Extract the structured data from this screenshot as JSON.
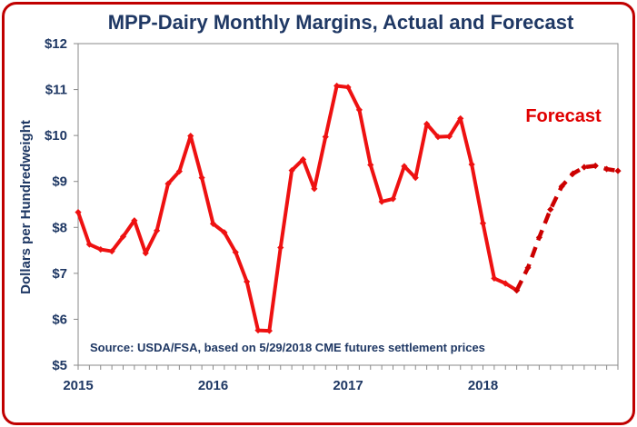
{
  "chart_data": {
    "type": "line",
    "title": "MPP-Dairy Monthly Margins, Actual and Forecast",
    "ylabel": "Dollars per Hundredweight",
    "xlabel": "",
    "ylim": [
      5,
      12
    ],
    "y_tick_values": [
      5,
      6,
      7,
      8,
      9,
      10,
      11,
      12
    ],
    "y_tick_labels": [
      "$5",
      "$6",
      "$7",
      "$8",
      "$9",
      "$10",
      "$11",
      "$12"
    ],
    "x_tick_labels": [
      "2015",
      "2016",
      "2017",
      "2018"
    ],
    "months_per_year": 12,
    "first_year": 2015,
    "annotation": "Forecast",
    "source_note": "Source:  USDA/FSA, based on 5/29/2018 CME futures settlement prices",
    "grid": false,
    "series": [
      {
        "style": "actual",
        "color": "#ee1111",
        "points": [
          {
            "x": "2015-01",
            "y": 8.33
          },
          {
            "x": "2015-02",
            "y": 7.63
          },
          {
            "x": "2015-03",
            "y": 7.52
          },
          {
            "x": "2015-04",
            "y": 7.48
          },
          {
            "x": "2015-05",
            "y": 7.8
          },
          {
            "x": "2015-06",
            "y": 8.15
          },
          {
            "x": "2015-07",
            "y": 7.44
          },
          {
            "x": "2015-08",
            "y": 7.93
          },
          {
            "x": "2015-09",
            "y": 8.95
          },
          {
            "x": "2015-10",
            "y": 9.22
          },
          {
            "x": "2015-11",
            "y": 9.99
          },
          {
            "x": "2015-12",
            "y": 9.08
          },
          {
            "x": "2016-01",
            "y": 8.08
          },
          {
            "x": "2016-02",
            "y": 7.89
          },
          {
            "x": "2016-03",
            "y": 7.46
          },
          {
            "x": "2016-04",
            "y": 6.82
          },
          {
            "x": "2016-05",
            "y": 5.76
          },
          {
            "x": "2016-06",
            "y": 5.75
          },
          {
            "x": "2016-07",
            "y": 7.56
          },
          {
            "x": "2016-08",
            "y": 9.24
          },
          {
            "x": "2016-09",
            "y": 9.48
          },
          {
            "x": "2016-10",
            "y": 8.84
          },
          {
            "x": "2016-11",
            "y": 9.97
          },
          {
            "x": "2016-12",
            "y": 11.08
          },
          {
            "x": "2017-01",
            "y": 11.05
          },
          {
            "x": "2017-02",
            "y": 10.56
          },
          {
            "x": "2017-03",
            "y": 9.36
          },
          {
            "x": "2017-04",
            "y": 8.56
          },
          {
            "x": "2017-05",
            "y": 8.62
          },
          {
            "x": "2017-06",
            "y": 9.33
          },
          {
            "x": "2017-07",
            "y": 9.08
          },
          {
            "x": "2017-08",
            "y": 10.25
          },
          {
            "x": "2017-09",
            "y": 9.97
          },
          {
            "x": "2017-10",
            "y": 9.98
          },
          {
            "x": "2017-11",
            "y": 10.37
          },
          {
            "x": "2017-12",
            "y": 9.37
          },
          {
            "x": "2018-01",
            "y": 8.09
          },
          {
            "x": "2018-02",
            "y": 6.89
          },
          {
            "x": "2018-03",
            "y": 6.78
          },
          {
            "x": "2018-04",
            "y": 6.63
          }
        ]
      },
      {
        "style": "forecast",
        "color": "#cc0000",
        "points": [
          {
            "x": "2018-04",
            "y": 6.63
          },
          {
            "x": "2018-05",
            "y": 7.12
          },
          {
            "x": "2018-06",
            "y": 7.78
          },
          {
            "x": "2018-07",
            "y": 8.39
          },
          {
            "x": "2018-08",
            "y": 8.89
          },
          {
            "x": "2018-09",
            "y": 9.17
          },
          {
            "x": "2018-10",
            "y": 9.31
          },
          {
            "x": "2018-11",
            "y": 9.34
          },
          {
            "x": "2018-12",
            "y": 9.27
          },
          {
            "x": "2019-01",
            "y": 9.23
          }
        ]
      }
    ]
  }
}
